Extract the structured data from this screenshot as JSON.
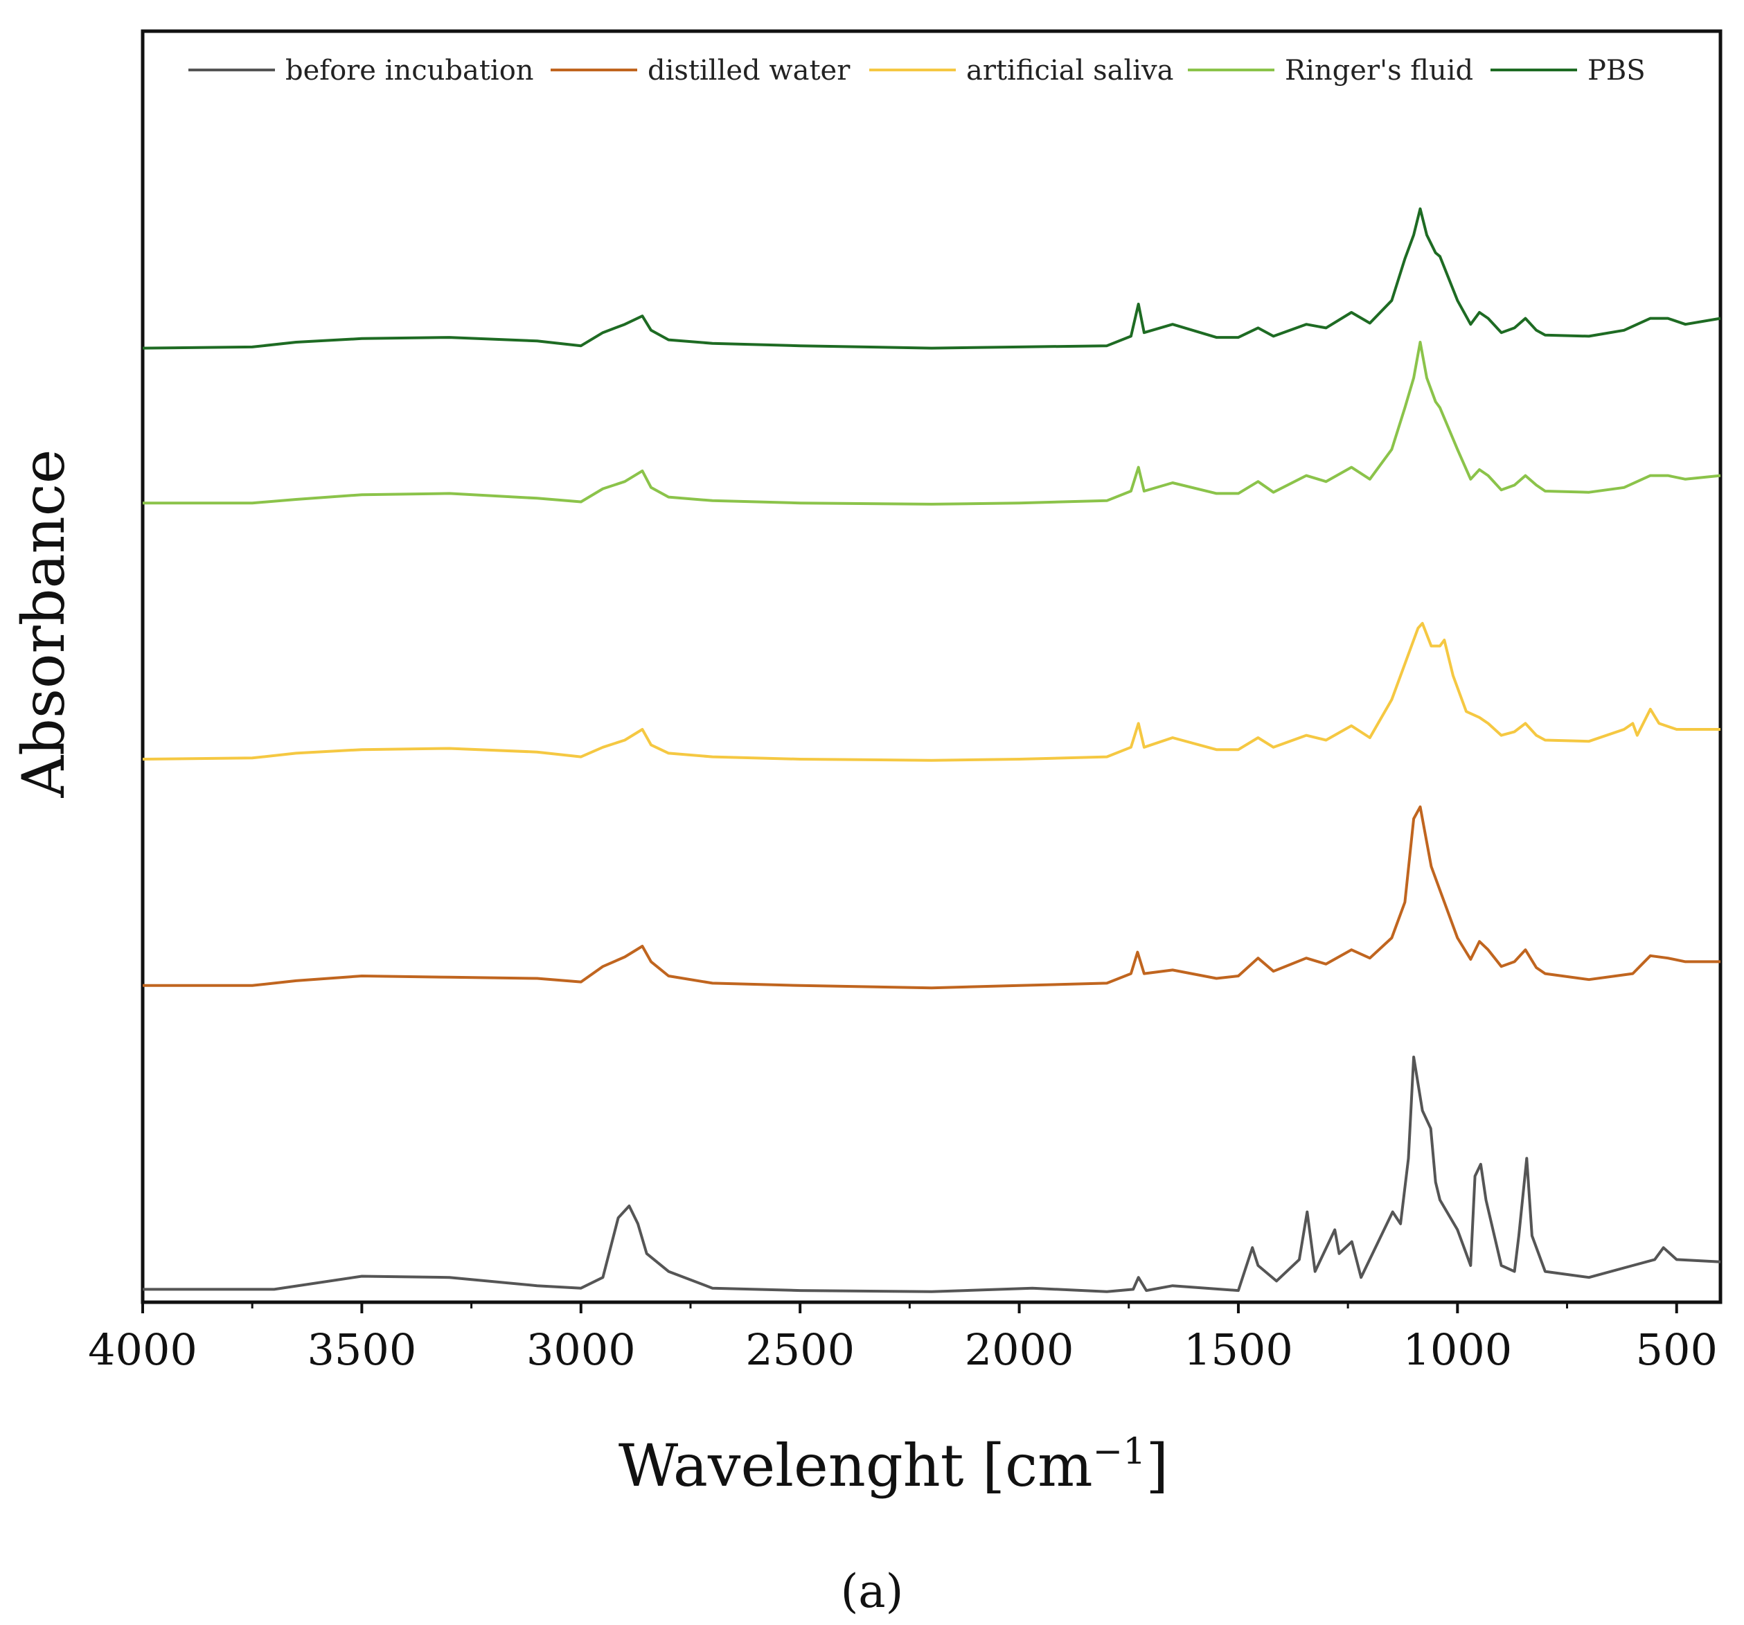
{
  "chart_data": {
    "type": "line",
    "title": "",
    "xlabel": "Wavelenght [cm",
    "xlabel_superscript": "−1",
    "xlabel_suffix": "]",
    "ylabel": "Absorbance",
    "panel_label": "(a)",
    "xlim": [
      4000,
      400
    ],
    "ylim": [
      0,
      1
    ],
    "x_ticks": [
      4000,
      3500,
      3000,
      2500,
      2000,
      1500,
      1000,
      500
    ],
    "x_tick_labels": [
      "4000",
      "3500",
      "3000",
      "2500",
      "2000",
      "1500",
      "1000",
      "500"
    ],
    "y_ticks_shown": false,
    "grid": false,
    "legend_position": "top",
    "x_unit": "cm−1",
    "y_unit": "arbitrary (vertically offset spectra)",
    "series": [
      {
        "name": "before incubation",
        "color": "#555555",
        "points": [
          [
            4000,
            0.005
          ],
          [
            3700,
            0.005
          ],
          [
            3500,
            0.016
          ],
          [
            3300,
            0.015
          ],
          [
            3100,
            0.008
          ],
          [
            3000,
            0.006
          ],
          [
            2950,
            0.015
          ],
          [
            2915,
            0.065
          ],
          [
            2890,
            0.075
          ],
          [
            2870,
            0.06
          ],
          [
            2850,
            0.035
          ],
          [
            2800,
            0.02
          ],
          [
            2700,
            0.006
          ],
          [
            2500,
            0.004
          ],
          [
            2200,
            0.003
          ],
          [
            1970,
            0.006
          ],
          [
            1800,
            0.003
          ],
          [
            1740,
            0.005
          ],
          [
            1728,
            0.015
          ],
          [
            1710,
            0.004
          ],
          [
            1650,
            0.008
          ],
          [
            1500,
            0.004
          ],
          [
            1468,
            0.04
          ],
          [
            1455,
            0.025
          ],
          [
            1413,
            0.012
          ],
          [
            1361,
            0.03
          ],
          [
            1343,
            0.07
          ],
          [
            1325,
            0.02
          ],
          [
            1280,
            0.055
          ],
          [
            1270,
            0.035
          ],
          [
            1241,
            0.045
          ],
          [
            1220,
            0.015
          ],
          [
            1148,
            0.07
          ],
          [
            1130,
            0.06
          ],
          [
            1112,
            0.115
          ],
          [
            1100,
            0.2
          ],
          [
            1080,
            0.155
          ],
          [
            1061,
            0.14
          ],
          [
            1050,
            0.095
          ],
          [
            1040,
            0.08
          ],
          [
            1000,
            0.055
          ],
          [
            970,
            0.025
          ],
          [
            960,
            0.1
          ],
          [
            947,
            0.11
          ],
          [
            935,
            0.08
          ],
          [
            900,
            0.025
          ],
          [
            870,
            0.02
          ],
          [
            860,
            0.05
          ],
          [
            842,
            0.115
          ],
          [
            830,
            0.05
          ],
          [
            800,
            0.02
          ],
          [
            700,
            0.015
          ],
          [
            600,
            0.025
          ],
          [
            550,
            0.03
          ],
          [
            530,
            0.04
          ],
          [
            500,
            0.03
          ],
          [
            400,
            0.028
          ]
        ]
      },
      {
        "name": "distilled water",
        "color": "#c0651f",
        "points": [
          [
            4000,
            0.26
          ],
          [
            3750,
            0.26
          ],
          [
            3650,
            0.264
          ],
          [
            3500,
            0.268
          ],
          [
            3300,
            0.267
          ],
          [
            3100,
            0.266
          ],
          [
            3000,
            0.263
          ],
          [
            2950,
            0.276
          ],
          [
            2900,
            0.284
          ],
          [
            2860,
            0.293
          ],
          [
            2840,
            0.28
          ],
          [
            2800,
            0.268
          ],
          [
            2700,
            0.262
          ],
          [
            2500,
            0.26
          ],
          [
            2200,
            0.258
          ],
          [
            2000,
            0.26
          ],
          [
            1800,
            0.262
          ],
          [
            1745,
            0.27
          ],
          [
            1730,
            0.288
          ],
          [
            1715,
            0.27
          ],
          [
            1650,
            0.273
          ],
          [
            1550,
            0.266
          ],
          [
            1500,
            0.268
          ],
          [
            1455,
            0.283
          ],
          [
            1420,
            0.272
          ],
          [
            1345,
            0.283
          ],
          [
            1300,
            0.278
          ],
          [
            1242,
            0.29
          ],
          [
            1200,
            0.283
          ],
          [
            1150,
            0.3
          ],
          [
            1120,
            0.33
          ],
          [
            1100,
            0.4
          ],
          [
            1085,
            0.41
          ],
          [
            1060,
            0.36
          ],
          [
            1040,
            0.34
          ],
          [
            1000,
            0.3
          ],
          [
            970,
            0.282
          ],
          [
            950,
            0.297
          ],
          [
            930,
            0.29
          ],
          [
            900,
            0.276
          ],
          [
            870,
            0.28
          ],
          [
            845,
            0.29
          ],
          [
            820,
            0.275
          ],
          [
            800,
            0.27
          ],
          [
            700,
            0.265
          ],
          [
            600,
            0.27
          ],
          [
            560,
            0.285
          ],
          [
            520,
            0.283
          ],
          [
            480,
            0.28
          ],
          [
            400,
            0.28
          ]
        ]
      },
      {
        "name": "artificial saliva",
        "color": "#f5c842",
        "points": [
          [
            4000,
            0.45
          ],
          [
            3750,
            0.451
          ],
          [
            3650,
            0.455
          ],
          [
            3500,
            0.458
          ],
          [
            3300,
            0.459
          ],
          [
            3100,
            0.456
          ],
          [
            3000,
            0.452
          ],
          [
            2950,
            0.46
          ],
          [
            2900,
            0.466
          ],
          [
            2860,
            0.475
          ],
          [
            2840,
            0.462
          ],
          [
            2800,
            0.455
          ],
          [
            2700,
            0.452
          ],
          [
            2500,
            0.45
          ],
          [
            2200,
            0.449
          ],
          [
            2000,
            0.45
          ],
          [
            1800,
            0.452
          ],
          [
            1745,
            0.46
          ],
          [
            1728,
            0.48
          ],
          [
            1715,
            0.46
          ],
          [
            1650,
            0.468
          ],
          [
            1550,
            0.458
          ],
          [
            1500,
            0.458
          ],
          [
            1455,
            0.468
          ],
          [
            1420,
            0.46
          ],
          [
            1345,
            0.47
          ],
          [
            1300,
            0.466
          ],
          [
            1242,
            0.478
          ],
          [
            1200,
            0.468
          ],
          [
            1150,
            0.5
          ],
          [
            1120,
            0.53
          ],
          [
            1090,
            0.56
          ],
          [
            1080,
            0.564
          ],
          [
            1060,
            0.545
          ],
          [
            1040,
            0.545
          ],
          [
            1030,
            0.55
          ],
          [
            1010,
            0.52
          ],
          [
            980,
            0.49
          ],
          [
            950,
            0.485
          ],
          [
            930,
            0.48
          ],
          [
            900,
            0.47
          ],
          [
            870,
            0.473
          ],
          [
            845,
            0.48
          ],
          [
            820,
            0.47
          ],
          [
            800,
            0.466
          ],
          [
            700,
            0.465
          ],
          [
            620,
            0.475
          ],
          [
            600,
            0.48
          ],
          [
            590,
            0.47
          ],
          [
            560,
            0.492
          ],
          [
            540,
            0.48
          ],
          [
            500,
            0.475
          ],
          [
            400,
            0.475
          ]
        ]
      },
      {
        "name": "Ringer's fluid",
        "color": "#8bc34a",
        "points": [
          [
            4000,
            0.665
          ],
          [
            3750,
            0.665
          ],
          [
            3650,
            0.668
          ],
          [
            3500,
            0.672
          ],
          [
            3300,
            0.673
          ],
          [
            3100,
            0.669
          ],
          [
            3000,
            0.666
          ],
          [
            2950,
            0.677
          ],
          [
            2900,
            0.683
          ],
          [
            2860,
            0.692
          ],
          [
            2840,
            0.678
          ],
          [
            2800,
            0.67
          ],
          [
            2700,
            0.667
          ],
          [
            2500,
            0.665
          ],
          [
            2200,
            0.664
          ],
          [
            2000,
            0.665
          ],
          [
            1800,
            0.667
          ],
          [
            1745,
            0.675
          ],
          [
            1728,
            0.695
          ],
          [
            1715,
            0.675
          ],
          [
            1650,
            0.682
          ],
          [
            1550,
            0.673
          ],
          [
            1500,
            0.673
          ],
          [
            1455,
            0.683
          ],
          [
            1420,
            0.674
          ],
          [
            1345,
            0.688
          ],
          [
            1300,
            0.683
          ],
          [
            1242,
            0.695
          ],
          [
            1200,
            0.685
          ],
          [
            1150,
            0.71
          ],
          [
            1120,
            0.745
          ],
          [
            1100,
            0.77
          ],
          [
            1085,
            0.8
          ],
          [
            1070,
            0.77
          ],
          [
            1050,
            0.75
          ],
          [
            1040,
            0.745
          ],
          [
            1000,
            0.71
          ],
          [
            970,
            0.685
          ],
          [
            950,
            0.693
          ],
          [
            930,
            0.688
          ],
          [
            900,
            0.676
          ],
          [
            870,
            0.68
          ],
          [
            845,
            0.688
          ],
          [
            820,
            0.68
          ],
          [
            800,
            0.675
          ],
          [
            700,
            0.674
          ],
          [
            620,
            0.678
          ],
          [
            560,
            0.688
          ],
          [
            520,
            0.688
          ],
          [
            480,
            0.685
          ],
          [
            400,
            0.688
          ]
        ]
      },
      {
        "name": "PBS",
        "color": "#1e6b23",
        "points": [
          [
            4000,
            0.795
          ],
          [
            3750,
            0.796
          ],
          [
            3650,
            0.8
          ],
          [
            3500,
            0.803
          ],
          [
            3300,
            0.804
          ],
          [
            3100,
            0.801
          ],
          [
            3000,
            0.797
          ],
          [
            2950,
            0.808
          ],
          [
            2900,
            0.815
          ],
          [
            2860,
            0.822
          ],
          [
            2840,
            0.81
          ],
          [
            2800,
            0.802
          ],
          [
            2700,
            0.799
          ],
          [
            2500,
            0.797
          ],
          [
            2200,
            0.795
          ],
          [
            2000,
            0.796
          ],
          [
            1800,
            0.797
          ],
          [
            1745,
            0.805
          ],
          [
            1728,
            0.832
          ],
          [
            1715,
            0.808
          ],
          [
            1650,
            0.815
          ],
          [
            1550,
            0.804
          ],
          [
            1500,
            0.804
          ],
          [
            1455,
            0.812
          ],
          [
            1420,
            0.805
          ],
          [
            1345,
            0.815
          ],
          [
            1300,
            0.812
          ],
          [
            1242,
            0.825
          ],
          [
            1200,
            0.816
          ],
          [
            1150,
            0.835
          ],
          [
            1120,
            0.87
          ],
          [
            1100,
            0.89
          ],
          [
            1085,
            0.912
          ],
          [
            1070,
            0.89
          ],
          [
            1050,
            0.875
          ],
          [
            1040,
            0.872
          ],
          [
            1000,
            0.835
          ],
          [
            970,
            0.815
          ],
          [
            950,
            0.825
          ],
          [
            930,
            0.82
          ],
          [
            900,
            0.808
          ],
          [
            870,
            0.812
          ],
          [
            845,
            0.82
          ],
          [
            820,
            0.81
          ],
          [
            800,
            0.806
          ],
          [
            700,
            0.805
          ],
          [
            620,
            0.81
          ],
          [
            560,
            0.82
          ],
          [
            520,
            0.82
          ],
          [
            480,
            0.815
          ],
          [
            400,
            0.82
          ]
        ]
      }
    ]
  }
}
